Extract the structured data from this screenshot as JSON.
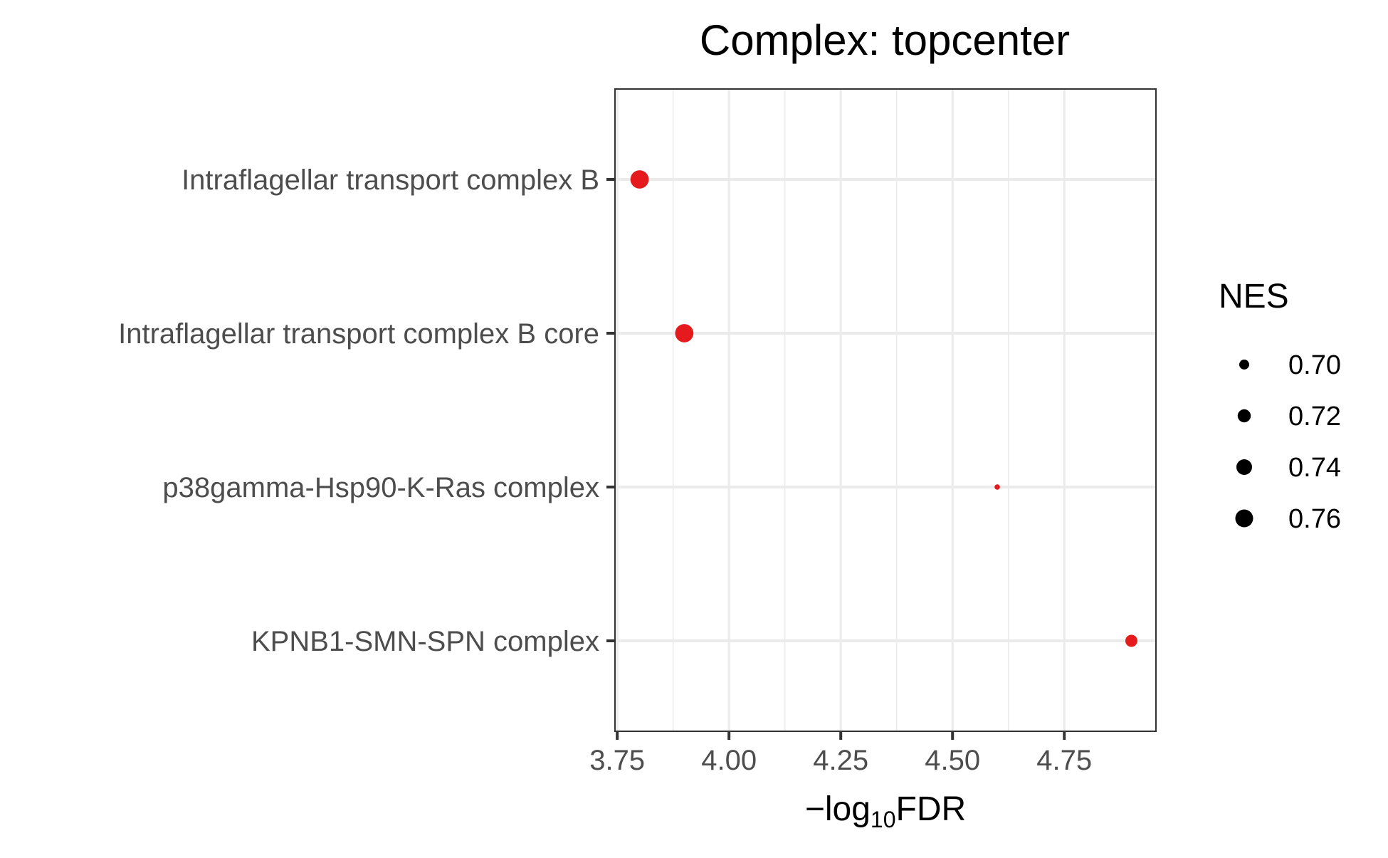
{
  "chart_data": {
    "type": "scatter",
    "title": "Complex: topcenter",
    "xlabel_prefix": "−log",
    "xlabel_subscript": "10",
    "xlabel_suffix": "FDR",
    "xlim": [
      3.745,
      4.955
    ],
    "xticks": [
      3.75,
      4.0,
      4.25,
      4.5,
      4.75
    ],
    "xtick_labels": [
      "3.75",
      "4.00",
      "4.25",
      "4.50",
      "4.75"
    ],
    "categories": [
      "Intraflagellar transport complex B",
      "Intraflagellar transport complex B core ",
      "p38gamma-Hsp90-K-Ras complex",
      "KPNB1-SMN-SPN complex"
    ],
    "points": [
      {
        "category": "Intraflagellar transport complex B",
        "x": 3.8,
        "nes": 0.765
      },
      {
        "category": "Intraflagellar transport complex B core ",
        "x": 3.9,
        "nes": 0.765
      },
      {
        "category": "p38gamma-Hsp90-K-Ras complex",
        "x": 4.6,
        "nes": 0.681
      },
      {
        "category": "KPNB1-SMN-SPN complex",
        "x": 4.9,
        "nes": 0.713
      }
    ],
    "point_color": "#e41a1c",
    "grid": true,
    "legend": {
      "title": "NES",
      "position": "right",
      "entries": [
        {
          "label": "0.70",
          "value": 0.7
        },
        {
          "label": "0.72",
          "value": 0.72
        },
        {
          "label": "0.74",
          "value": 0.74
        },
        {
          "label": "0.76",
          "value": 0.76
        }
      ],
      "color": "#000000"
    }
  }
}
